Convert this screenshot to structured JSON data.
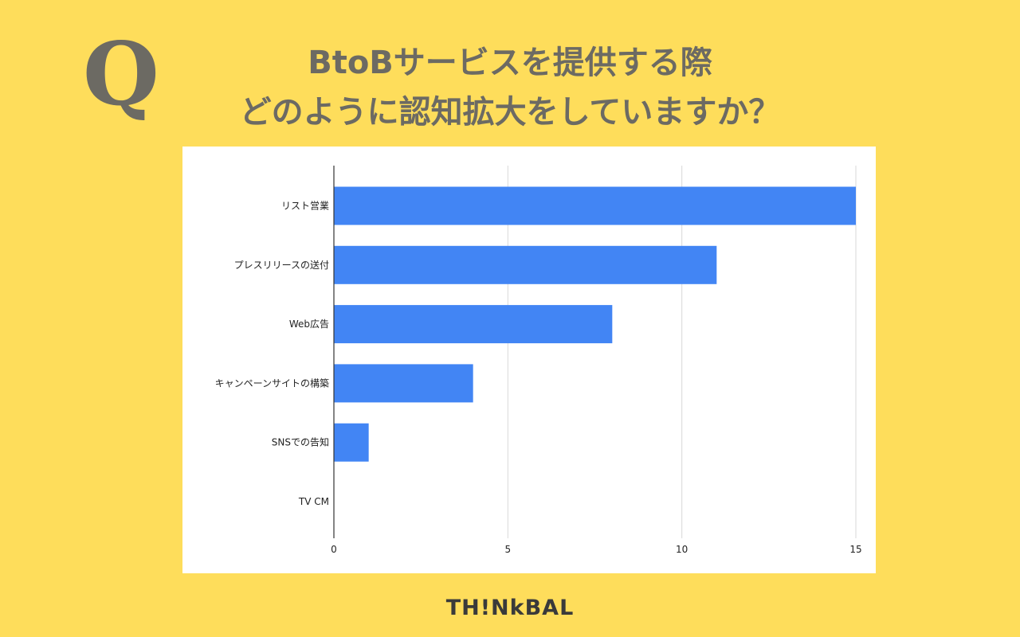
{
  "header": {
    "q_mark": "Q",
    "title_line1": "BtoBサービスを提供する際",
    "title_line2": "どのように認知拡大をしていますか？"
  },
  "brand": {
    "name": "TH!NkBAL"
  },
  "colors": {
    "background": "#fedd5b",
    "bar": "#4285f4",
    "heading": "#6c6a63"
  },
  "chart_data": {
    "type": "bar",
    "orientation": "horizontal",
    "categories": [
      "リスト営業",
      "プレスリリースの送付",
      "Web広告",
      "キャンペーンサイトの構築",
      "SNSでの告知",
      "TV CM"
    ],
    "values": [
      15,
      11,
      8,
      4,
      1,
      0
    ],
    "xlim": [
      0,
      15
    ],
    "x_ticks": [
      0,
      5,
      10,
      15
    ],
    "grid": true,
    "legend": "none"
  }
}
